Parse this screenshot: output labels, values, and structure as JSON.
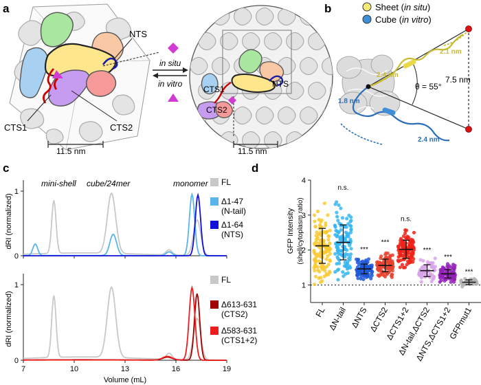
{
  "panels": {
    "a": "a",
    "b": "b",
    "c": "c",
    "d": "d"
  },
  "panel_a": {
    "labels": {
      "nts": "NTS",
      "cts1": "CTS1",
      "cts2": "CTS2",
      "in_situ": "in situ",
      "in_vitro": "in vitro",
      "scale_left": "11.5 nm",
      "scale_right": "11.5 nm",
      "inset_cts1": "CTS1",
      "inset_cts2": "CTS2",
      "inset_nts": "NTS"
    },
    "colors": {
      "green": "#a9e6a0",
      "yellow": "#fde68c",
      "orange": "#f8c7a4",
      "blue": "#a8d1f1",
      "purple": "#c59cf0",
      "red": "#f59999",
      "grey": "#d9d9d9",
      "magenta": "#d23ad4",
      "tail_red": "#cc0000",
      "tail_blue": "#1a1aa8"
    }
  },
  "panel_b": {
    "legend": [
      {
        "name": "Sheet",
        "qualifier": "in situ",
        "color": "#f4ec7a"
      },
      {
        "name": "Cube",
        "qualifier": "in vitro",
        "color": "#3f8fd6"
      }
    ],
    "measures": {
      "yellow_inner": "2.4 nm",
      "yellow_outer": "2.1 nm",
      "blue_inner": "1.8 nm",
      "blue_outer": "2.4 nm",
      "distance": "7.5 nm",
      "angle": "θ = 55°"
    }
  },
  "chart_data": [
    {
      "type": "line",
      "title": "",
      "xlabel": "Volume (mL)",
      "ylabel": "dRI (normalized)",
      "xlim": [
        7,
        19
      ],
      "ylim": [
        0,
        1
      ],
      "xticks": [
        7,
        10,
        13,
        16,
        19
      ],
      "yticks": [
        0,
        1
      ],
      "annotations": [
        "mini-shell",
        "cube/24mer",
        "monomer"
      ],
      "panels": [
        {
          "series": [
            {
              "name": "FL",
              "color": "#c8c8c8",
              "peaks": [
                [
                  8.8,
                  0.82,
                  0.18
                ],
                [
                  12.2,
                  0.93,
                  0.35
                ],
                [
                  17.25,
                  0.55,
                  0.3
                ],
                [
                  15.6,
                  0.08,
                  0.25
                ]
              ],
              "base": 0.22
            },
            {
              "name": "Δ1-47 (N-tail)",
              "color": "#5ab4ec",
              "peaks": [
                [
                  7.7,
                  0.18,
                  0.2
                ],
                [
                  12.3,
                  0.33,
                  0.28
                ],
                [
                  16.95,
                  0.95,
                  0.22
                ],
                [
                  15.6,
                  0.06,
                  0.25
                ]
              ],
              "base": 0.02
            },
            {
              "name": "Δ1-64 (NTS)",
              "color": "#1010d8",
              "peaks": [
                [
                  17.3,
                  0.94,
                  0.22
                ]
              ],
              "base": 0
            }
          ]
        },
        {
          "series": [
            {
              "name": "FL",
              "color": "#c8c8c8",
              "peaks": [
                [
                  8.8,
                  0.82,
                  0.18
                ],
                [
                  12.2,
                  0.93,
                  0.35
                ],
                [
                  17.25,
                  0.55,
                  0.3
                ],
                [
                  15.6,
                  0.08,
                  0.25
                ]
              ],
              "base": 0.22
            },
            {
              "name": "Δ613-631 (CTS2)",
              "color": "#a00000",
              "peaks": [
                [
                  17.25,
                  0.88,
                  0.22
                ],
                [
                  15.5,
                  0.04,
                  0.4
                ]
              ],
              "base": 0.03
            },
            {
              "name": "Δ583-631 (CTS1+2)",
              "color": "#ee1d1d",
              "peaks": [
                [
                  16.95,
                  0.96,
                  0.24
                ],
                [
                  15.5,
                  0.05,
                  0.4
                ]
              ],
              "base": 0.02
            }
          ]
        }
      ],
      "legend": [
        {
          "line1": "FL",
          "line2": "",
          "color": "#c8c8c8"
        },
        {
          "line1": "Δ1-47",
          "line2": "(N-tail)",
          "color": "#5ab4ec"
        },
        {
          "line1": "Δ1-64",
          "line2": "(NTS)",
          "color": "#1010d8"
        },
        {
          "line1": "FL",
          "line2": "",
          "color": "#c8c8c8"
        },
        {
          "line1": "Δ613-631",
          "line2": "(CTS2)",
          "color": "#a00000"
        },
        {
          "line1": "Δ583-631",
          "line2": "(CTS1+2)",
          "color": "#ee1d1d"
        }
      ]
    },
    {
      "type": "scatter",
      "title": "",
      "ylabel_line1": "GFP Intensity",
      "ylabel_line2": "(shell/cytoplasm ratio)",
      "ylim": [
        0.5,
        4.0
      ],
      "yticks": [
        1,
        2,
        3,
        4
      ],
      "reference_line": 1,
      "categories": [
        "FL",
        "ΔN-tail",
        "ΔNTS",
        "ΔCTS2",
        "ΔCTS1+2",
        "ΔN-tail,ΔCTS2",
        "ΔNTS,ΔCTS1+2",
        "GFPmut1"
      ],
      "colors": [
        "#f9c933",
        "#37b6f1",
        "#1f58d8",
        "#e6432f",
        "#ee2218",
        "#d9a3e8",
        "#9421b8",
        "#b4b4b4"
      ],
      "means": [
        2.12,
        2.22,
        1.46,
        1.56,
        2.02,
        1.41,
        1.32,
        1.08
      ],
      "sd": [
        0.5,
        0.5,
        0.14,
        0.18,
        0.26,
        0.17,
        0.12,
        0.07
      ],
      "spread": [
        0.55,
        0.55,
        0.16,
        0.2,
        0.28,
        0.17,
        0.13,
        0.06
      ],
      "counts": [
        130,
        120,
        90,
        100,
        110,
        60,
        80,
        40
      ],
      "significance": [
        "",
        "n.s.",
        "***",
        "***",
        "n.s.",
        "***",
        "***",
        "***"
      ]
    }
  ]
}
